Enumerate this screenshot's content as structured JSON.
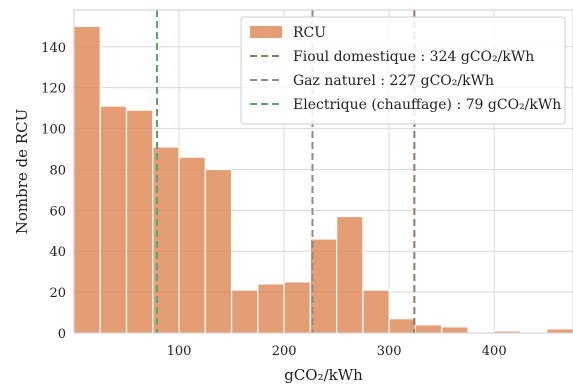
{
  "chart_data": {
    "type": "bar",
    "bin_width": 25,
    "bins": [
      {
        "x0": 0,
        "x1": 25,
        "value": 150
      },
      {
        "x0": 25,
        "x1": 50,
        "value": 111
      },
      {
        "x0": 50,
        "x1": 75,
        "value": 109
      },
      {
        "x0": 75,
        "x1": 100,
        "value": 91
      },
      {
        "x0": 100,
        "x1": 125,
        "value": 86
      },
      {
        "x0": 125,
        "x1": 150,
        "value": 80
      },
      {
        "x0": 150,
        "x1": 175,
        "value": 21
      },
      {
        "x0": 175,
        "x1": 200,
        "value": 24
      },
      {
        "x0": 200,
        "x1": 225,
        "value": 25
      },
      {
        "x0": 225,
        "x1": 250,
        "value": 46
      },
      {
        "x0": 250,
        "x1": 275,
        "value": 57
      },
      {
        "x0": 275,
        "x1": 300,
        "value": 21
      },
      {
        "x0": 300,
        "x1": 325,
        "value": 7
      },
      {
        "x0": 325,
        "x1": 350,
        "value": 4
      },
      {
        "x0": 350,
        "x1": 375,
        "value": 3
      },
      {
        "x0": 375,
        "x1": 400,
        "value": 0
      },
      {
        "x0": 400,
        "x1": 425,
        "value": 1
      },
      {
        "x0": 425,
        "x1": 450,
        "value": 0
      },
      {
        "x0": 450,
        "x1": 475,
        "value": 2
      }
    ],
    "xlim": [
      0,
      475
    ],
    "ylim": [
      0,
      158
    ],
    "xticks": [
      100,
      200,
      300,
      400
    ],
    "yticks": [
      0,
      20,
      40,
      60,
      80,
      100,
      120,
      140
    ],
    "xlabel": "gCO₂/kWh",
    "ylabel": "Nombre de RCU",
    "grid": true,
    "legend_position": "top-right",
    "vlines": [
      {
        "label": "Fioul domestique : 324 gCO₂/kWh",
        "x": 324,
        "color": "#937860"
      },
      {
        "label": "Gaz naturel : 227 gCO₂/kWh",
        "x": 227,
        "color": "#8c8c8c"
      },
      {
        "label": "Electrique (chauffage) : 79 gCO₂/kWh",
        "x": 79,
        "color": "#55a868"
      }
    ],
    "series": [
      {
        "name": "RCU",
        "color": "#dd8452"
      }
    ]
  }
}
